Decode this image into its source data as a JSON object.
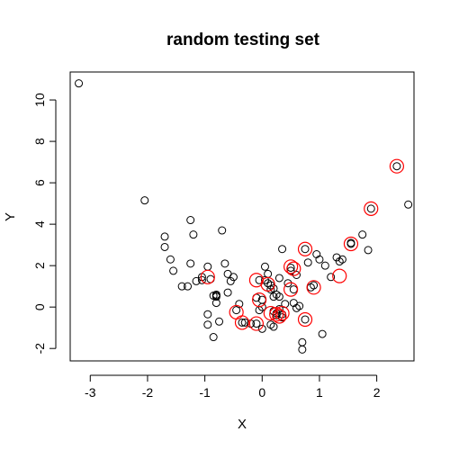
{
  "chart_data": {
    "type": "scatter",
    "title": "random testing set",
    "xlabel": "X",
    "ylabel": "Y",
    "xlim": [
      -3.35,
      2.65
    ],
    "ylim": [
      -2.6,
      11.35
    ],
    "xticks": [
      "-3",
      "-2",
      "-1",
      "0",
      "1",
      "2"
    ],
    "yticks": [
      "-2",
      "0",
      "2",
      "4",
      "6",
      "8",
      "10"
    ],
    "grid": false,
    "legend": "none",
    "colors": {
      "points": "#000000",
      "highlight": "#ff0000"
    },
    "series": [
      {
        "marker": "open-circle",
        "x": [
          -3.2,
          -2.05,
          -1.7,
          -1.7,
          -1.6,
          -1.55,
          -1.4,
          -1.3,
          -1.25,
          -1.25,
          -1.2,
          -1.15,
          -1.05,
          -1.05,
          -0.95,
          -0.95,
          -0.95,
          -0.9,
          -0.85,
          -0.85,
          -0.8,
          -0.8,
          -0.8,
          -0.8,
          -0.75,
          -0.7,
          -0.65,
          -0.6,
          -0.6,
          -0.55,
          -0.5,
          -0.45,
          -0.4,
          -0.35,
          -0.3,
          -0.2,
          -0.1,
          -0.1,
          -0.05,
          -0.05,
          0.0,
          0.0,
          0.0,
          0.05,
          0.05,
          0.1,
          0.1,
          0.15,
          0.15,
          0.15,
          0.2,
          0.2,
          0.2,
          0.2,
          0.25,
          0.25,
          0.25,
          0.3,
          0.3,
          0.3,
          0.35,
          0.35,
          0.35,
          0.4,
          0.45,
          0.5,
          0.5,
          0.55,
          0.55,
          0.6,
          0.6,
          0.65,
          0.7,
          0.7,
          0.75,
          0.75,
          0.8,
          0.85,
          0.9,
          0.95,
          1.0,
          1.05,
          1.1,
          1.2,
          1.3,
          1.35,
          1.4,
          1.55,
          1.55,
          1.75,
          1.85,
          1.9,
          2.35,
          2.55
        ],
        "y": [
          10.8,
          5.15,
          3.4,
          2.9,
          2.3,
          1.75,
          1.0,
          1.0,
          2.1,
          4.2,
          3.5,
          1.25,
          1.3,
          1.45,
          -0.35,
          -0.85,
          1.95,
          1.35,
          0.55,
          -1.45,
          0.2,
          0.6,
          0.55,
          0.5,
          -0.7,
          3.7,
          2.1,
          1.6,
          0.7,
          1.25,
          1.45,
          -0.15,
          0.15,
          -0.75,
          -0.75,
          -0.8,
          -0.8,
          0.45,
          1.3,
          -0.15,
          -1.05,
          0.35,
          0.0,
          1.95,
          1.3,
          1.6,
          1.15,
          0.85,
          1.05,
          -0.85,
          -0.95,
          0.9,
          -0.2,
          0.5,
          -0.3,
          -0.4,
          0.6,
          -0.1,
          0.5,
          1.4,
          2.8,
          -0.35,
          -0.5,
          0.15,
          1.15,
          1.9,
          1.75,
          0.85,
          0.2,
          -0.05,
          1.55,
          0.05,
          -1.7,
          -2.05,
          2.8,
          -0.6,
          2.15,
          0.95,
          1.05,
          2.55,
          2.3,
          -1.3,
          2.0,
          1.45,
          2.4,
          2.2,
          2.3,
          3.05,
          3.1,
          3.5,
          2.75,
          4.75,
          6.8,
          4.95
        ]
      },
      {
        "marker": "red-ring",
        "x": [
          -0.95,
          -0.45,
          -0.35,
          -0.1,
          -0.1,
          -0.05,
          0.1,
          0.15,
          0.25,
          0.3,
          0.35,
          0.5,
          0.5,
          0.55,
          0.75,
          0.75,
          0.9,
          1.35,
          1.55,
          1.9,
          2.35
        ],
        "y": [
          1.45,
          -0.25,
          -0.75,
          -0.8,
          1.3,
          0.35,
          1.1,
          -0.3,
          -0.35,
          -0.45,
          -0.3,
          0.85,
          1.95,
          1.85,
          2.8,
          -0.6,
          0.95,
          1.5,
          3.05,
          4.75,
          6.8
        ]
      }
    ]
  }
}
